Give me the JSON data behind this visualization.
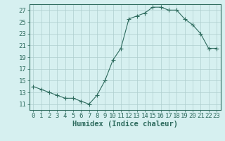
{
  "x": [
    0,
    1,
    2,
    3,
    4,
    5,
    6,
    7,
    8,
    9,
    10,
    11,
    12,
    13,
    14,
    15,
    16,
    17,
    18,
    19,
    20,
    21,
    22,
    23
  ],
  "y": [
    14,
    13.5,
    13,
    12.5,
    12,
    12,
    11.5,
    11,
    12.5,
    15,
    18.5,
    20.5,
    25.5,
    26,
    26.5,
    27.5,
    27.5,
    27,
    27,
    25.5,
    24.5,
    23,
    20.5,
    20.5
  ],
  "line_color": "#2e6b5e",
  "marker": "+",
  "marker_size": 4,
  "bg_color": "#d6f0f0",
  "grid_color": "#aecece",
  "tick_color": "#2e6b5e",
  "label_color": "#2e6b5e",
  "xlabel": "Humidex (Indice chaleur)",
  "xlim": [
    -0.5,
    23.5
  ],
  "ylim": [
    10.0,
    28.0
  ],
  "yticks": [
    11,
    13,
    15,
    17,
    19,
    21,
    23,
    25,
    27
  ],
  "xticks": [
    0,
    1,
    2,
    3,
    4,
    5,
    6,
    7,
    8,
    9,
    10,
    11,
    12,
    13,
    14,
    15,
    16,
    17,
    18,
    19,
    20,
    21,
    22,
    23
  ],
  "font_size": 6.5,
  "xlabel_size": 7.5
}
